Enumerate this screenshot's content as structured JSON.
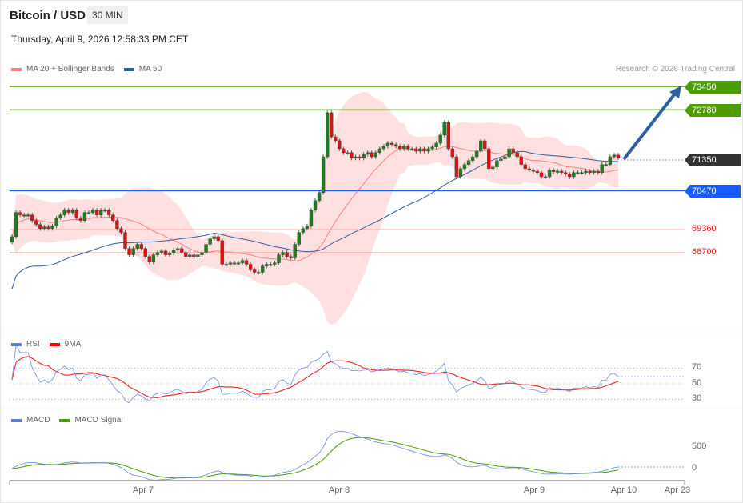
{
  "header": {
    "title": "Bitcoin / USD",
    "timeframe": "30 MIN",
    "datetime": "Thursday, April 9, 2026 12:58:33 PM CET",
    "credit": "Research © 2026 Trading Central"
  },
  "legend": {
    "ma20": "MA 20 + Bollinger Bands",
    "ma50": "MA 50",
    "rsi": "RSI",
    "rsi_ma": "9MA",
    "macd": "MACD",
    "macd_signal": "MACD Signal"
  },
  "colors": {
    "up": "#1e7b1e",
    "down": "#e01010",
    "band": "#ffe0e0",
    "ma20": "#ff8080",
    "ma50": "#2f5fa0",
    "resistance": "#4a9e00",
    "pivot": "#1a5cff",
    "support": "#ff8a8a",
    "current": "#333333"
  },
  "levels": {
    "r2": "73450",
    "r1": "72780",
    "current": "71350",
    "pivot": "70470",
    "s1": "69360",
    "s2": "68700"
  },
  "rsi_axis": [
    "70",
    "50",
    "30"
  ],
  "macd_axis": [
    "500",
    "0"
  ],
  "dates": [
    "Apr 7",
    "Apr 8",
    "Apr 9",
    "Apr 10",
    "Apr 23"
  ],
  "chart_data": {
    "type": "candlestick",
    "first_open": 69000,
    "closes": [
      69160,
      69850,
      69780,
      69780,
      69780,
      69620,
      69510,
      69390,
      69440,
      69390,
      69460,
      69690,
      69780,
      69920,
      69850,
      69920,
      69690,
      69620,
      69850,
      69850,
      69920,
      69780,
      69920,
      69920,
      69780,
      69620,
      69390,
      69280,
      68820,
      68640,
      68820,
      68940,
      68820,
      68590,
      68430,
      68640,
      68710,
      68750,
      68640,
      68690,
      68780,
      68820,
      68710,
      68590,
      68640,
      68590,
      68640,
      68710,
      68940,
      69100,
      69160,
      69050,
      68370,
      68370,
      68410,
      68410,
      68410,
      68480,
      68370,
      68210,
      68140,
      68140,
      68320,
      68370,
      68370,
      68410,
      68640,
      68710,
      68590,
      68550,
      68940,
      69280,
      69390,
      69460,
      69920,
      70190,
      70420,
      71440,
      72700,
      72010,
      71900,
      71670,
      71560,
      71560,
      71400,
      71440,
      71400,
      71510,
      71560,
      71440,
      71560,
      71670,
      71740,
      71830,
      71790,
      71740,
      71670,
      71740,
      71670,
      71670,
      71600,
      71670,
      71600,
      71670,
      71720,
      71830,
      72060,
      72420,
      71670,
      71440,
      70870,
      71100,
      71220,
      71330,
      71440,
      71600,
      71900,
      71670,
      71100,
      71150,
      71330,
      71380,
      71440,
      71670,
      71560,
      71440,
      71220,
      71100,
      71060,
      71030,
      70990,
      70870,
      70870,
      71060,
      71010,
      71030,
      70990,
      70940,
      70870,
      70990,
      70990,
      70990,
      71030,
      70990,
      71030,
      70990,
      71220,
      71220,
      71440,
      71490,
      71400
    ],
    "indicators": [
      "MA 20 + Bollinger Bands",
      "MA 50",
      "RSI",
      "9MA",
      "MACD",
      "MACD Signal"
    ],
    "target": 73450
  }
}
